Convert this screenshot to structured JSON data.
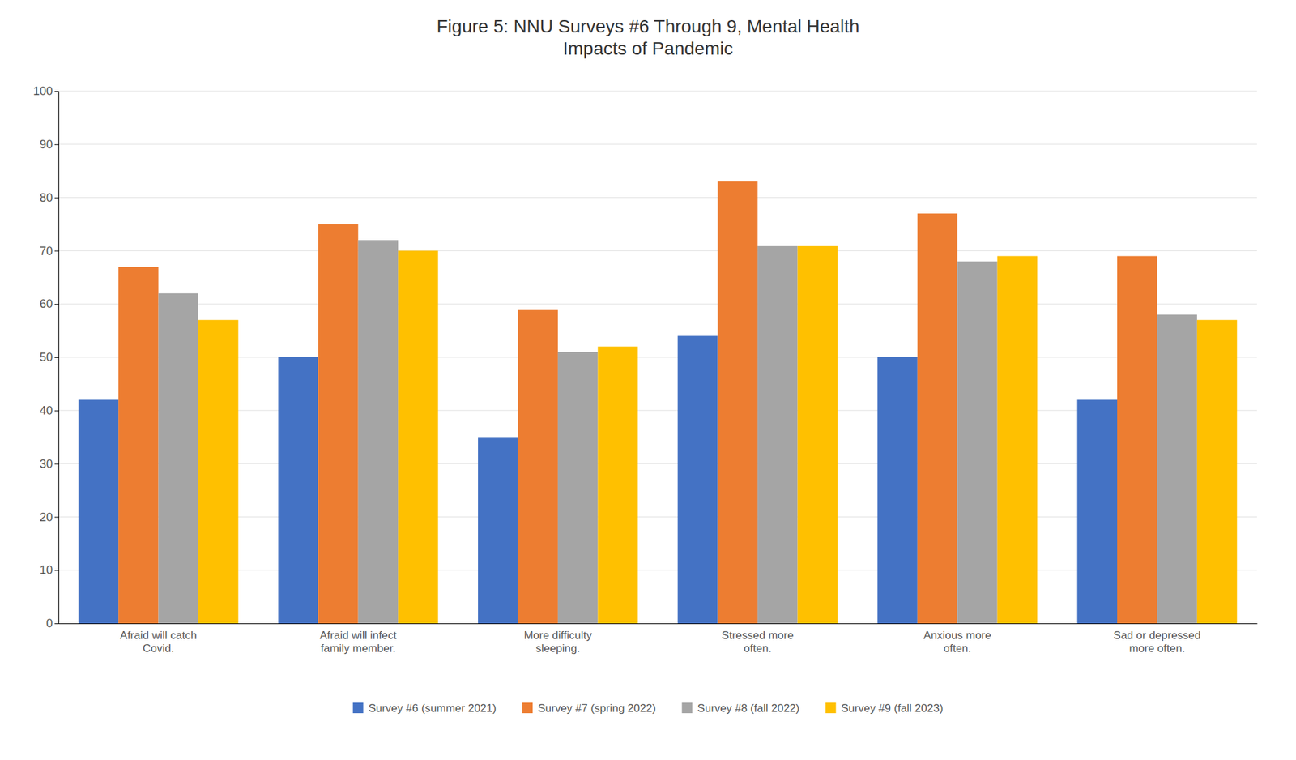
{
  "chart_data": {
    "type": "bar",
    "title": "Figure 5: NNU Surveys #6 Through 9, Mental Health\nImpacts of Pandemic",
    "categories": [
      "Afraid will catch\nCovid.",
      "Afraid will infect\nfamily member.",
      "More difficulty\nsleeping.",
      "Stressed more\noften.",
      "Anxious more\noften.",
      "Sad or depressed\nmore often."
    ],
    "series": [
      {
        "name": "Survey #6 (summer 2021)",
        "color": "#4472C4",
        "values": [
          42,
          50,
          35,
          54,
          50,
          42
        ]
      },
      {
        "name": "Survey #7 (spring 2022)",
        "color": "#ED7D31",
        "values": [
          67,
          75,
          59,
          83,
          77,
          69
        ]
      },
      {
        "name": "Survey #8 (fall 2022)",
        "color": "#A5A5A5",
        "values": [
          62,
          72,
          51,
          71,
          68,
          58
        ]
      },
      {
        "name": "Survey #9 (fall 2023)",
        "color": "#FFC000",
        "values": [
          57,
          70,
          52,
          71,
          69,
          57
        ]
      }
    ],
    "ylim": [
      0,
      100
    ],
    "yticks": [
      0,
      10,
      20,
      30,
      40,
      50,
      60,
      70,
      80,
      90,
      100
    ],
    "grid": true,
    "legend": "bottom"
  }
}
